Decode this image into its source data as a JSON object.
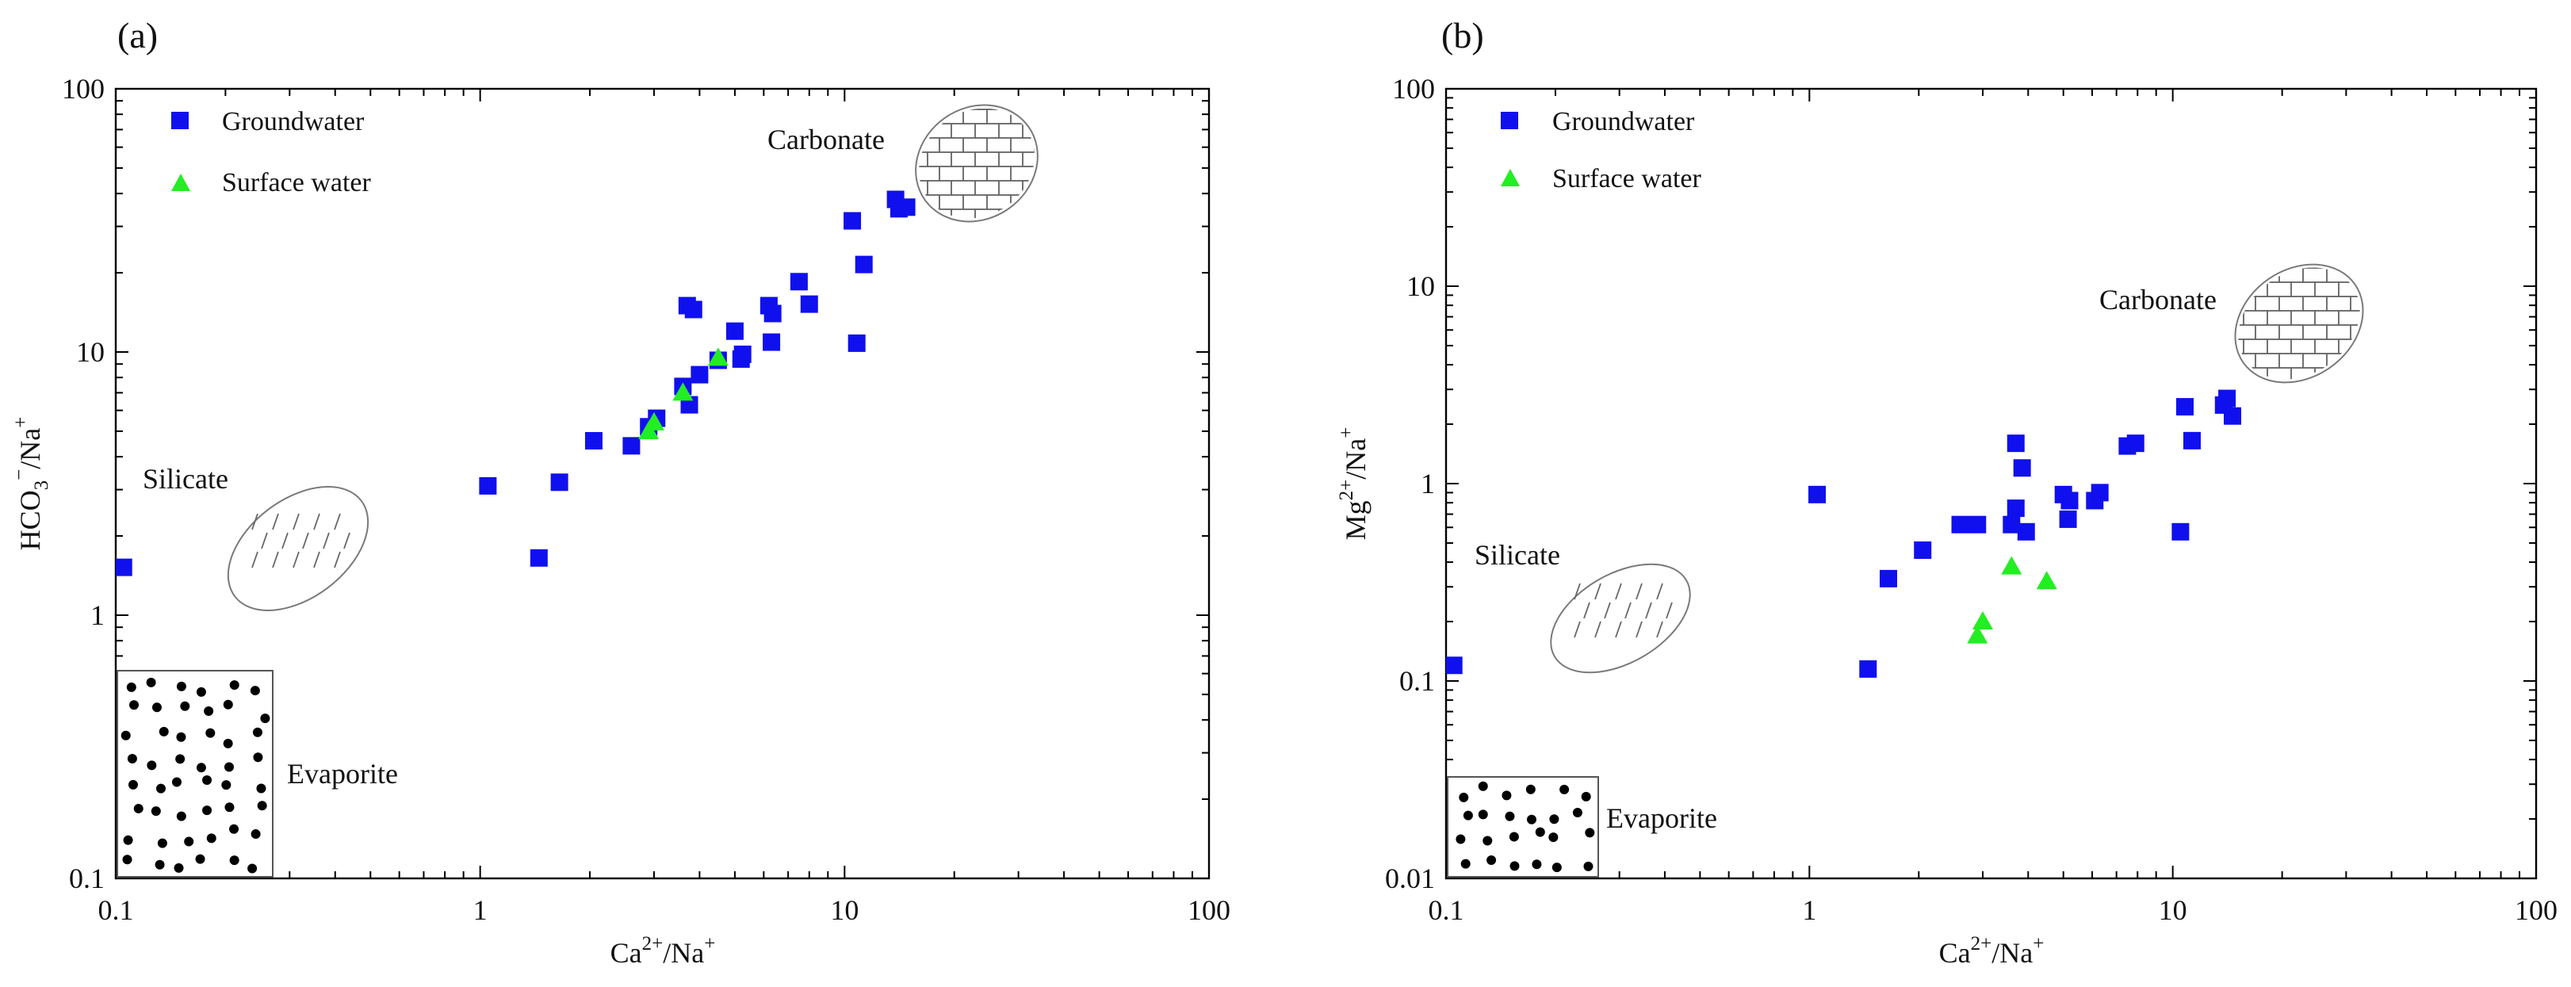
{
  "chart_data": [
    {
      "type": "scatter",
      "panel": "(a)",
      "xscale": "log",
      "yscale": "log",
      "xlim": [
        0.1,
        100
      ],
      "ylim": [
        0.1,
        100
      ],
      "x_ticks": [
        "0.1",
        "1",
        "10",
        "100"
      ],
      "y_ticks": [
        "0.1",
        "1",
        "10",
        "100"
      ],
      "xlabel": {
        "base": "Ca",
        "sup": "2+",
        "mid": "/Na",
        "sup2": "+"
      },
      "ylabel": {
        "base": "HCO",
        "sub": "3",
        "sup": "−",
        "mid": "/Na",
        "sup2": "+"
      },
      "legend": [
        "Groundwater",
        "Surface water"
      ],
      "regions": [
        "Carbonate",
        "Silicate",
        "Evaporite"
      ],
      "series": [
        {
          "name": "Groundwater",
          "marker": "square",
          "color": "#1010ee",
          "points": [
            [
              0.105,
              1.52
            ],
            [
              1.05,
              3.1
            ],
            [
              1.45,
              1.65
            ],
            [
              1.65,
              3.2
            ],
            [
              2.05,
              4.6
            ],
            [
              2.6,
              4.4
            ],
            [
              2.9,
              5.2
            ],
            [
              3.05,
              5.6
            ],
            [
              3.6,
              7.4
            ],
            [
              3.7,
              15.0
            ],
            [
              3.85,
              14.5
            ],
            [
              3.75,
              6.3
            ],
            [
              4.0,
              8.2
            ],
            [
              4.5,
              9.3
            ],
            [
              5.0,
              12.0
            ],
            [
              5.2,
              9.4
            ],
            [
              5.25,
              9.8
            ],
            [
              6.2,
              15.0
            ],
            [
              6.35,
              14.0
            ],
            [
              6.3,
              10.9
            ],
            [
              7.5,
              18.5
            ],
            [
              8.0,
              15.2
            ],
            [
              10.5,
              31.5
            ],
            [
              10.8,
              10.8
            ],
            [
              11.3,
              21.5
            ],
            [
              13.8,
              38.0
            ],
            [
              14.1,
              35.0
            ],
            [
              14.8,
              35.5
            ]
          ]
        },
        {
          "name": "Surface water",
          "marker": "triangle",
          "color": "#22ee22",
          "points": [
            [
              2.9,
              5.0
            ],
            [
              3.0,
              5.4
            ],
            [
              3.6,
              7.0
            ],
            [
              4.5,
              9.5
            ]
          ]
        }
      ]
    },
    {
      "type": "scatter",
      "panel": "(b)",
      "xscale": "log",
      "yscale": "log",
      "xlim": [
        0.1,
        100
      ],
      "ylim": [
        0.01,
        100
      ],
      "x_ticks": [
        "0.1",
        "1",
        "10",
        "100"
      ],
      "y_ticks": [
        "0.01",
        "0.1",
        "1",
        "10",
        "100"
      ],
      "xlabel": {
        "base": "Ca",
        "sup": "2+",
        "mid": "/Na",
        "sup2": "+"
      },
      "ylabel": {
        "base": "Mg",
        "sup": "2+",
        "mid": "/Na",
        "sup2": "+"
      },
      "legend": [
        "Groundwater",
        "Surface water"
      ],
      "regions": [
        "Carbonate",
        "Silicate",
        "Evaporite"
      ],
      "series": [
        {
          "name": "Groundwater",
          "marker": "square",
          "color": "#1010ee",
          "points": [
            [
              0.105,
              0.12
            ],
            [
              1.05,
              0.88
            ],
            [
              1.45,
              0.115
            ],
            [
              1.65,
              0.33
            ],
            [
              2.05,
              0.46
            ],
            [
              2.6,
              0.62
            ],
            [
              2.9,
              0.62
            ],
            [
              3.6,
              0.62
            ],
            [
              3.7,
              1.6
            ],
            [
              3.7,
              0.75
            ],
            [
              3.85,
              1.2
            ],
            [
              3.95,
              0.57
            ],
            [
              5.0,
              0.88
            ],
            [
              5.15,
              0.66
            ],
            [
              5.2,
              0.82
            ],
            [
              6.1,
              0.82
            ],
            [
              6.3,
              0.9
            ],
            [
              7.5,
              1.55
            ],
            [
              7.9,
              1.6
            ],
            [
              10.5,
              0.57
            ],
            [
              10.8,
              2.45
            ],
            [
              11.3,
              1.65
            ],
            [
              13.8,
              2.5
            ],
            [
              14.1,
              2.7
            ],
            [
              14.6,
              2.2
            ]
          ]
        },
        {
          "name": "Surface water",
          "marker": "triangle",
          "color": "#22ee22",
          "points": [
            [
              2.9,
              0.17
            ],
            [
              3.0,
              0.2
            ],
            [
              3.6,
              0.38
            ],
            [
              4.5,
              0.32
            ]
          ]
        }
      ]
    }
  ]
}
